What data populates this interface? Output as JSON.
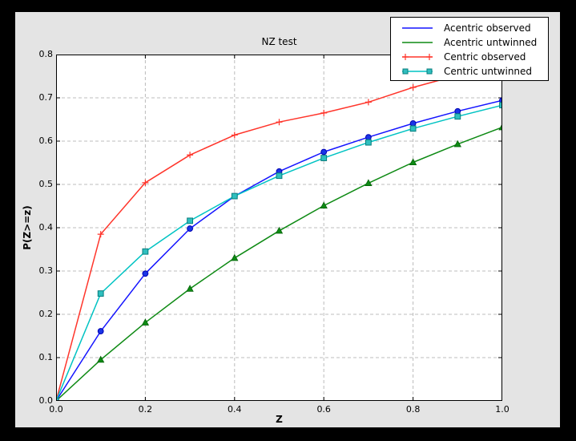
{
  "chart_data": {
    "type": "line",
    "title": "NZ test",
    "xlabel": "Z",
    "ylabel": "P(Z>=z)",
    "xlim": [
      0.0,
      1.0
    ],
    "ylim": [
      0.0,
      0.8
    ],
    "xticks": [
      0.0,
      0.2,
      0.4,
      0.6,
      0.8,
      1.0
    ],
    "xtick_labels": [
      "0.0",
      "0.2",
      "0.4",
      "0.6",
      "0.8",
      "1.0"
    ],
    "yticks": [
      0.0,
      0.1,
      0.2,
      0.3,
      0.4,
      0.5,
      0.6,
      0.7,
      0.8
    ],
    "ytick_labels": [
      "0.0",
      "0.1",
      "0.2",
      "0.3",
      "0.4",
      "0.5",
      "0.6",
      "0.7",
      "0.8"
    ],
    "grid_on": true,
    "grid_x": [
      0.2,
      0.4,
      0.6,
      0.8
    ],
    "grid_y": [
      0.1,
      0.2,
      0.3,
      0.4,
      0.5,
      0.6,
      0.7
    ],
    "legend_position": "top-right",
    "x": [
      0.0,
      0.1,
      0.2,
      0.3,
      0.4,
      0.5,
      0.6,
      0.7,
      0.8,
      0.9,
      1.0
    ],
    "series": [
      {
        "name": "Acentric observed",
        "color": "#1414ff",
        "marker": "circle",
        "marker_fill": "#1a35e6",
        "marker_edge": "#0000b4",
        "legend_sample_markers": false,
        "values": [
          0.0,
          0.161,
          0.294,
          0.398,
          0.473,
          0.53,
          0.575,
          0.609,
          0.641,
          0.669,
          0.694
        ]
      },
      {
        "name": "Acentric untwinned",
        "color": "#0e8a14",
        "marker": "triangle",
        "marker_fill": "#0e8a14",
        "marker_edge": "#056309",
        "legend_sample_markers": false,
        "values": [
          0.0,
          0.095,
          0.181,
          0.259,
          0.33,
          0.393,
          0.451,
          0.503,
          0.551,
          0.593,
          0.632
        ]
      },
      {
        "name": "Centric observed",
        "color": "#ff352b",
        "marker": "plus",
        "marker_fill": "#ff352b",
        "marker_edge": "#ff352b",
        "legend_sample_markers": true,
        "values": [
          0.0,
          0.385,
          0.504,
          0.568,
          0.614,
          0.644,
          0.665,
          0.69,
          0.724,
          0.752,
          0.778
        ]
      },
      {
        "name": "Centric untwinned",
        "color": "#00c3c3",
        "marker": "square",
        "marker_fill": "#2fbfbf",
        "marker_edge": "#087d7d",
        "legend_sample_markers": true,
        "values": [
          0.0,
          0.248,
          0.345,
          0.416,
          0.473,
          0.52,
          0.561,
          0.597,
          0.629,
          0.657,
          0.683
        ]
      }
    ],
    "colors": {
      "outer_bg": "#000000",
      "figure_bg": "#e4e4e4",
      "plot_bg": "#ffffff",
      "grid": "#bcbcbc"
    }
  }
}
